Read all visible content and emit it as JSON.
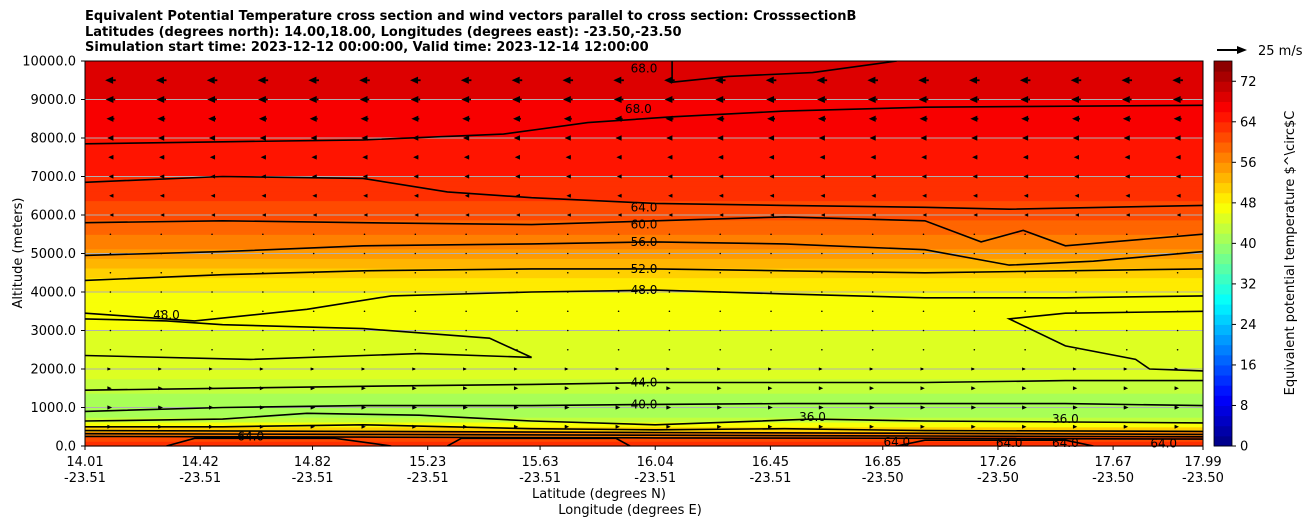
{
  "chart_data": {
    "type": "contour",
    "title_lines": [
      "Equivalent Potential Temperature cross section and wind vectors parallel to cross section: CrosssectionB",
      "Latitudes (degrees north): 14.00,18.00, Longitudes (degrees east): -23.50,-23.50",
      "Simulation start time: 2023-12-12 00:00:00, Valid time: 2023-12-14 12:00:00"
    ],
    "ylabel": "Altitude (meters)",
    "xlabel_lat": "Latitude (degrees N)",
    "xlabel_lon": "Longitude (degrees E)",
    "ylim": [
      0,
      10000
    ],
    "yticks": [
      "0.0",
      "1000.0",
      "2000.0",
      "3000.0",
      "4000.0",
      "5000.0",
      "6000.0",
      "7000.0",
      "8000.0",
      "9000.0",
      "10000.0"
    ],
    "yvalues": [
      0,
      1000,
      2000,
      3000,
      4000,
      5000,
      6000,
      7000,
      8000,
      9000,
      10000
    ],
    "xlim": [
      14.01,
      17.99
    ],
    "xticks": [
      {
        "lat": "14.01",
        "lon": "-23.51",
        "v": 14.01
      },
      {
        "lat": "14.42",
        "lon": "-23.51",
        "v": 14.42
      },
      {
        "lat": "14.82",
        "lon": "-23.51",
        "v": 14.82
      },
      {
        "lat": "15.23",
        "lon": "-23.51",
        "v": 15.23
      },
      {
        "lat": "15.63",
        "lon": "-23.51",
        "v": 15.63
      },
      {
        "lat": "16.04",
        "lon": "-23.51",
        "v": 16.04
      },
      {
        "lat": "16.45",
        "lon": "-23.51",
        "v": 16.45
      },
      {
        "lat": "16.85",
        "lon": "-23.50",
        "v": 16.85
      },
      {
        "lat": "17.26",
        "lon": "-23.50",
        "v": 17.26
      },
      {
        "lat": "17.67",
        "lon": "-23.50",
        "v": 17.67
      },
      {
        "lat": "17.99",
        "lon": "-23.50",
        "v": 17.99
      }
    ],
    "grid": "horizontal",
    "colorbar": {
      "label": "Equivalent potential temperature $^\\circ$C",
      "min": 0,
      "max": 76,
      "step": 2,
      "ticks": [
        "0",
        "8",
        "16",
        "24",
        "32",
        "40",
        "48",
        "56",
        "64",
        "72"
      ],
      "tick_values": [
        0,
        8,
        16,
        24,
        32,
        40,
        48,
        56,
        64,
        72
      ],
      "colormap": "jet"
    },
    "contour_labels": [
      {
        "text": "68.0",
        "x": 16.0,
        "y": 9800
      },
      {
        "text": "68.0",
        "x": 15.98,
        "y": 8750
      },
      {
        "text": "64.0",
        "x": 16.0,
        "y": 6200
      },
      {
        "text": "60.0",
        "x": 16.0,
        "y": 5750
      },
      {
        "text": "56.0",
        "x": 16.0,
        "y": 5300
      },
      {
        "text": "52.0",
        "x": 16.0,
        "y": 4600
      },
      {
        "text": "48.0",
        "x": 16.0,
        "y": 4050
      },
      {
        "text": "48.0",
        "x": 14.3,
        "y": 3400
      },
      {
        "text": "44.0",
        "x": 16.0,
        "y": 1650
      },
      {
        "text": "40.0",
        "x": 16.0,
        "y": 1080
      },
      {
        "text": "36.0",
        "x": 16.6,
        "y": 750
      },
      {
        "text": "36.0",
        "x": 17.5,
        "y": 700
      },
      {
        "text": "64.0",
        "x": 14.6,
        "y": 250
      },
      {
        "text": "64.0",
        "x": 16.9,
        "y": 100
      },
      {
        "text": "64.0",
        "x": 17.3,
        "y": 80
      },
      {
        "text": "64.0",
        "x": 17.5,
        "y": 80
      },
      {
        "text": "64.0",
        "x": 17.85,
        "y": 60
      }
    ],
    "wind_reference": {
      "label": "25 m/s",
      "speed": 25
    },
    "wind_levels": [
      {
        "z": 9500,
        "u": -12
      },
      {
        "z": 9000,
        "u": -11
      },
      {
        "z": 8500,
        "u": -9
      },
      {
        "z": 8000,
        "u": -7
      },
      {
        "z": 7500,
        "u": -5
      },
      {
        "z": 7000,
        "u": -4
      },
      {
        "z": 6500,
        "u": -3
      },
      {
        "z": 6000,
        "u": -2
      },
      {
        "z": 5500,
        "u": -1
      },
      {
        "z": 5000,
        "u": -0.5
      },
      {
        "z": 4500,
        "u": 0
      },
      {
        "z": 4000,
        "u": 0.3
      },
      {
        "z": 3500,
        "u": 0.5
      },
      {
        "z": 3000,
        "u": 0.5
      },
      {
        "z": 2500,
        "u": 1
      },
      {
        "z": 2000,
        "u": 1.5
      },
      {
        "z": 1500,
        "u": 3
      },
      {
        "z": 1000,
        "u": 4
      },
      {
        "z": 500,
        "u": 3
      }
    ]
  }
}
